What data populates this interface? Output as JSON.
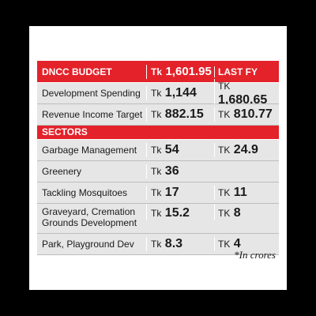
{
  "header": {
    "col1": "DNCC BUDGET",
    "col2_prefix": "Tk",
    "col2_value": "1,601.95",
    "col3": "LAST FY"
  },
  "rows_top": [
    {
      "label": "Development Spending",
      "cur_prefix": "Tk",
      "cur": "1,144",
      "prev_prefix": "TK",
      "prev": "1,680.65"
    },
    {
      "label": "Revenue Income Target",
      "cur_prefix": "Tk",
      "cur": "882.15",
      "prev_prefix": "TK",
      "prev": "810.77"
    }
  ],
  "sectors_label": "SECTORS",
  "rows_sectors": [
    {
      "label": "Garbage Management",
      "cur_prefix": "Tk",
      "cur": "54",
      "prev_prefix": "TK",
      "prev": "24.9"
    },
    {
      "label": "Greenery",
      "cur_prefix": "Tk",
      "cur": "36",
      "prev_prefix": "",
      "prev": ""
    },
    {
      "label": "Tackling Mosquitoes",
      "cur_prefix": "Tk",
      "cur": "17",
      "prev_prefix": "TK",
      "prev": "11"
    },
    {
      "label_line1": "Graveyard, Cremation",
      "label_line2": "Grounds Development",
      "cur_prefix": "Tk",
      "cur": "15.2",
      "prev_prefix": "TK",
      "prev": "8"
    },
    {
      "label": "Park, Playground Dev",
      "cur_prefix": "Tk",
      "cur": "8.3",
      "prev_prefix": "TK",
      "prev": "4"
    }
  ],
  "footnote": "*In crores",
  "colors": {
    "accent": "#e3222a",
    "row_bg": "#e6e6e6",
    "frame": "#000000"
  }
}
